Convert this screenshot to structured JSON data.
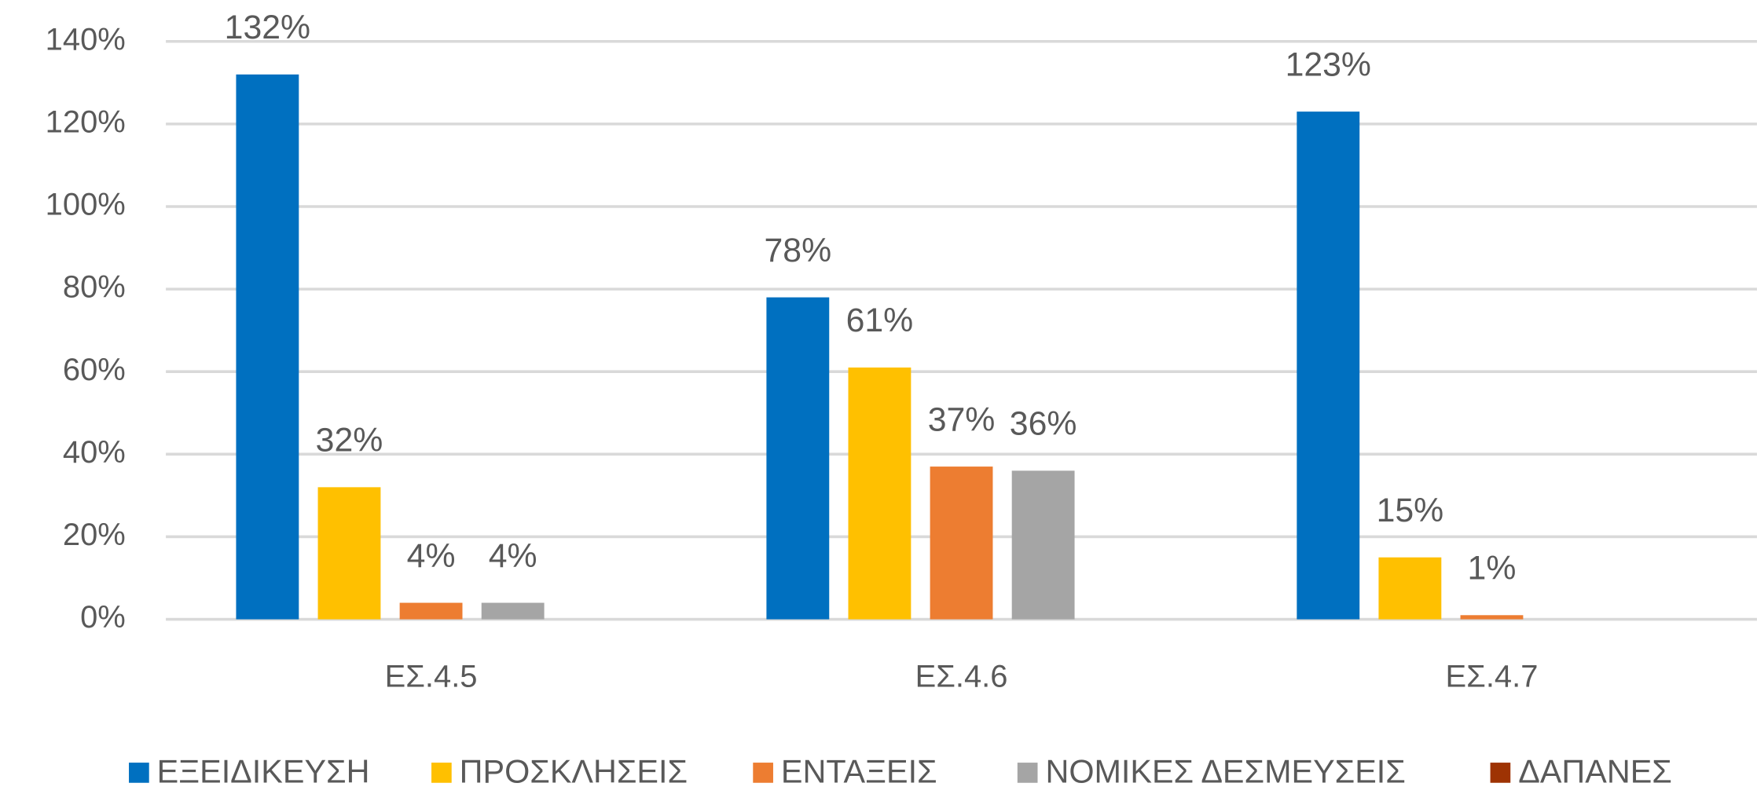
{
  "chart_data": {
    "type": "bar",
    "categories": [
      "ΕΣ.4.5",
      "ΕΣ.4.6",
      "ΕΣ.4.7"
    ],
    "series": [
      {
        "name": "ΕΞΕΙΔΙΚΕΥΣΗ",
        "color": "#0070C0",
        "values": [
          132,
          78,
          123
        ],
        "value_labels": [
          "132%",
          "78%",
          "123%"
        ]
      },
      {
        "name": "ΠΡΟΣΚΛΗΣΕΙΣ",
        "color": "#FFC000",
        "values": [
          32,
          61,
          15
        ],
        "value_labels": [
          "32%",
          "61%",
          "15%"
        ]
      },
      {
        "name": "ΕΝΤΑΞΕΙΣ",
        "color": "#ED7D31",
        "values": [
          4,
          37,
          1
        ],
        "value_labels": [
          "4%",
          "37%",
          "1%"
        ]
      },
      {
        "name": "ΝΟΜΙΚΕΣ ΔΕΣΜΕΥΣΕΙΣ",
        "color": "#A5A5A5",
        "values": [
          4,
          36,
          null
        ],
        "value_labels": [
          "4%",
          "36%",
          null
        ]
      },
      {
        "name": "ΔΑΠΑΝΕΣ",
        "color": "#9E3303",
        "values": [
          null,
          null,
          null
        ],
        "value_labels": [
          null,
          null,
          null
        ]
      }
    ],
    "ylim": [
      0,
      140
    ],
    "yticks": [
      {
        "value": 0,
        "label": "0%"
      },
      {
        "value": 20,
        "label": "20%"
      },
      {
        "value": 40,
        "label": "40%"
      },
      {
        "value": 60,
        "label": "60%"
      },
      {
        "value": 80,
        "label": "80%"
      },
      {
        "value": 100,
        "label": "100%"
      },
      {
        "value": 120,
        "label": "120%"
      },
      {
        "value": 140,
        "label": "140%"
      }
    ],
    "grid": true,
    "legend": "bottom"
  }
}
